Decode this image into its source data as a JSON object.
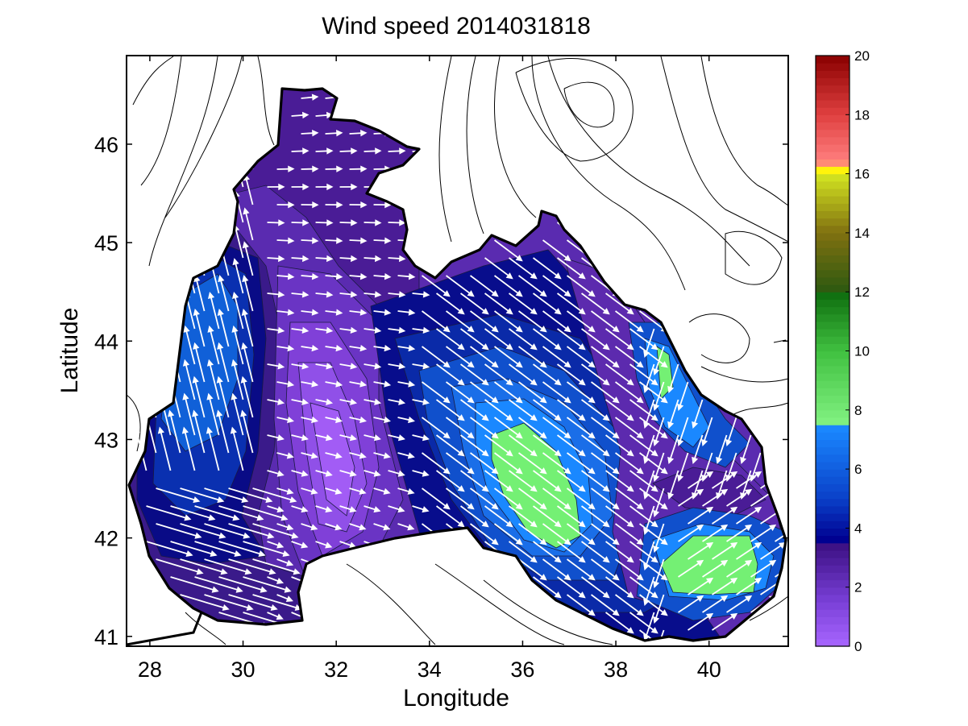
{
  "chart_data": {
    "type": "contour map with wind vectors",
    "title": "Wind speed 2014031818",
    "xlabel": "Longitude",
    "ylabel": "Latitude",
    "xlim": [
      27.5,
      41.7
    ],
    "ylim": [
      40.9,
      46.9
    ],
    "xticks": [
      "28",
      "30",
      "32",
      "34",
      "36",
      "38",
      "40"
    ],
    "yticks": [
      "41",
      "42",
      "43",
      "44",
      "45",
      "46"
    ],
    "colorbar": {
      "range": [
        0,
        20
      ],
      "ticks": [
        "0",
        "2",
        "4",
        "6",
        "8",
        "10",
        "12",
        "14",
        "16",
        "18",
        "20"
      ],
      "bands": [
        {
          "from": 0,
          "to": 3.5,
          "color": "#6a2cb8"
        },
        {
          "from": 3.5,
          "to": 7.5,
          "color": "#1a4fd0"
        },
        {
          "from": 7.5,
          "to": 12,
          "color": "#3cb04a"
        },
        {
          "from": 12,
          "to": 16,
          "color": "#8a8a1a"
        },
        {
          "from": 16,
          "to": 20,
          "color": "#c0282a"
        }
      ]
    },
    "regions": [
      {
        "name": "high wind zone center",
        "lon": 36.2,
        "lat": 42.5,
        "speed": 8.2
      },
      {
        "name": "high wind zone east",
        "lon": 40.1,
        "lat": 41.7,
        "speed": 8.0
      },
      {
        "name": "low wind zone west-central",
        "lon": 32.2,
        "lat": 42.8,
        "speed": 0.3
      },
      {
        "name": "moderate zone west",
        "lon": 29.5,
        "lat": 43.6,
        "speed": 5.5
      }
    ],
    "colors": {
      "purple_dark": "#41128a",
      "purple_mid": "#6a34c4",
      "purple_light": "#a15cf4",
      "blue_dark": "#080d8c",
      "blue_mid": "#1050cc",
      "blue_light": "#1a88ff",
      "green_light": "#74f074",
      "arrow": "#ffffff"
    }
  }
}
